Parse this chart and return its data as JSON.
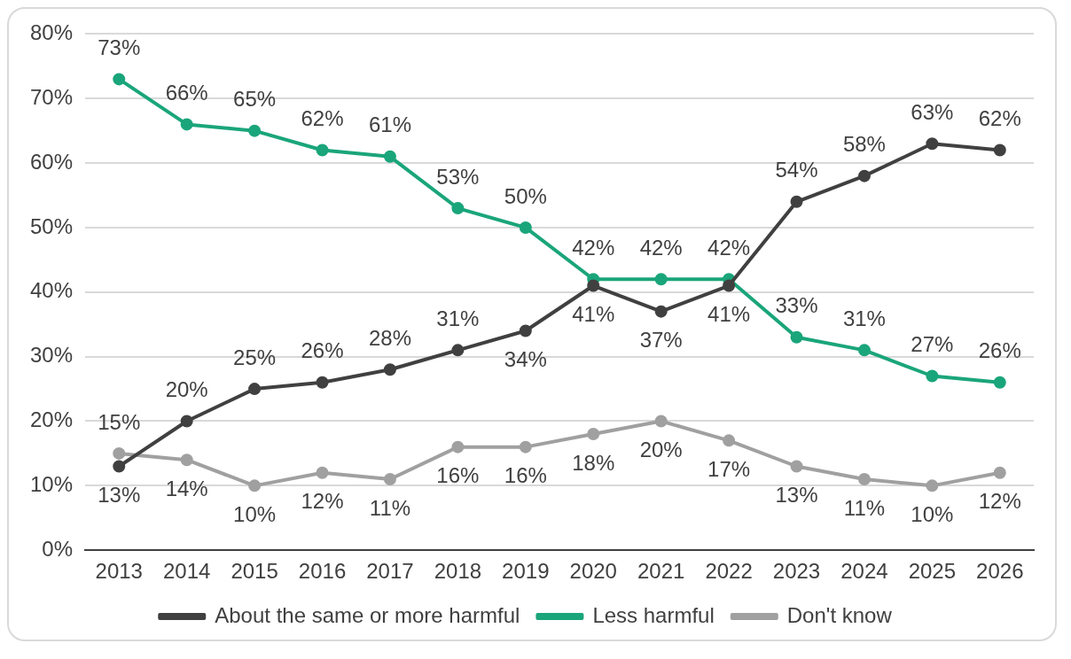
{
  "chart_data": {
    "type": "line",
    "categories": [
      "2013",
      "2014",
      "2015",
      "2016",
      "2017",
      "2018",
      "2019",
      "2020",
      "2021",
      "2022",
      "2023",
      "2024",
      "2025",
      "2026"
    ],
    "series": [
      {
        "name": "About the same or more harmful",
        "color": "#404040",
        "values": [
          13,
          20,
          25,
          26,
          28,
          31,
          34,
          41,
          37,
          41,
          54,
          58,
          63,
          62
        ],
        "value_labels": [
          "13%",
          "20%",
          "25%",
          "26%",
          "28%",
          "31%",
          "34%",
          "41%",
          "37%",
          "41%",
          "54%",
          "58%",
          "63%",
          "62%"
        ]
      },
      {
        "name": "Less harmful",
        "color": "#1aa57a",
        "values": [
          73,
          66,
          65,
          62,
          61,
          53,
          50,
          42,
          42,
          42,
          33,
          31,
          27,
          26
        ],
        "value_labels": [
          "73%",
          "66%",
          "65%",
          "62%",
          "61%",
          "53%",
          "50%",
          "42%",
          "42%",
          "42%",
          "33%",
          "31%",
          "27%",
          "26%"
        ]
      },
      {
        "name": "Don't know",
        "color": "#a0a0a0",
        "values": [
          15,
          14,
          10,
          12,
          11,
          16,
          16,
          18,
          20,
          17,
          13,
          11,
          10,
          12
        ],
        "value_labels": [
          "15%",
          "14%",
          "10%",
          "12%",
          "11%",
          "16%",
          "16%",
          "18%",
          "20%",
          "17%",
          "13%",
          "11%",
          "10%",
          "12%"
        ]
      }
    ],
    "ylim": [
      0,
      80
    ],
    "yticks": [
      {
        "value": 0,
        "label": "0%"
      },
      {
        "value": 10,
        "label": "10%"
      },
      {
        "value": 20,
        "label": "20%"
      },
      {
        "value": 30,
        "label": "30%"
      },
      {
        "value": 40,
        "label": "40%"
      },
      {
        "value": 50,
        "label": "50%"
      },
      {
        "value": 60,
        "label": "60%"
      },
      {
        "value": 70,
        "label": "70%"
      },
      {
        "value": 80,
        "label": "80%"
      }
    ],
    "grid": "y",
    "legend": "bottom",
    "marker": "circle",
    "line_style": "solid"
  }
}
